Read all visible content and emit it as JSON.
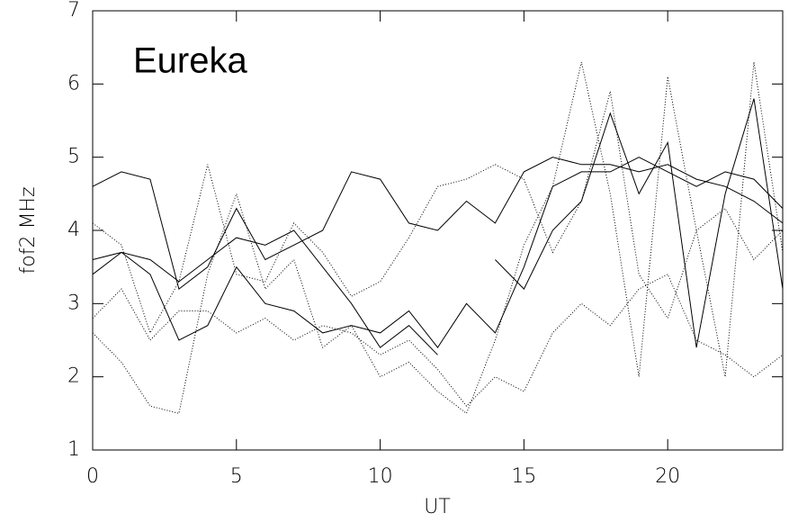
{
  "chart_data": {
    "type": "line",
    "annotation": "Eureka",
    "xlabel": "UT",
    "ylabel": "fof2 MHz",
    "xlim": [
      0,
      24
    ],
    "ylim": [
      1,
      7
    ],
    "xticks": [
      0,
      5,
      10,
      15,
      20
    ],
    "yticks": [
      1,
      2,
      3,
      4,
      5,
      6,
      7
    ],
    "x": [
      0,
      1,
      2,
      3,
      4,
      5,
      6,
      7,
      8,
      9,
      10,
      11,
      12,
      13,
      14,
      15,
      16,
      17,
      18,
      19,
      20,
      21,
      22,
      23,
      24
    ],
    "series": [
      {
        "color": "#000000",
        "style": "solid",
        "values": [
          4.6,
          4.8,
          4.7,
          3.2,
          3.5,
          4.3,
          3.6,
          3.8,
          4.0,
          4.8,
          4.7,
          4.1,
          4.0,
          4.4,
          4.1,
          4.8,
          5.0,
          4.9,
          4.9,
          4.8,
          4.9,
          4.7,
          4.6,
          4.4,
          4.1
        ]
      },
      {
        "color": "#000000",
        "style": "solid",
        "values": [
          3.6,
          3.7,
          3.4,
          2.5,
          2.7,
          3.5,
          3.0,
          2.9,
          2.6,
          2.7,
          2.6,
          2.9,
          2.4,
          3.0,
          2.6,
          3.5,
          4.6,
          4.8,
          4.8,
          5.0,
          4.8,
          4.6,
          4.8,
          4.7,
          4.3
        ]
      },
      {
        "color": "#000000",
        "style": "solid",
        "values": [
          3.4,
          3.7,
          3.6,
          3.3,
          3.6,
          3.9,
          3.8,
          4.0,
          3.5,
          3.0,
          2.4,
          2.7,
          2.3,
          null,
          3.6,
          3.2,
          4.0,
          4.4,
          5.6,
          4.5,
          5.2,
          2.4,
          4.5,
          5.8,
          3.2
        ]
      },
      {
        "color": "#000000",
        "style": "dotted",
        "values": [
          2.8,
          3.2,
          2.5,
          2.9,
          2.9,
          2.6,
          2.8,
          2.5,
          2.7,
          2.6,
          2.3,
          2.5,
          2.1,
          1.6,
          2.0,
          1.8,
          2.6,
          3.0,
          2.7,
          3.2,
          3.4,
          2.5,
          2.3,
          2.0,
          2.3
        ]
      },
      {
        "color": "#000000",
        "style": "dotted",
        "values": [
          2.6,
          2.2,
          1.6,
          1.5,
          3.4,
          4.5,
          3.2,
          3.6,
          2.4,
          2.7,
          2.0,
          2.2,
          1.8,
          1.5,
          2.5,
          3.8,
          4.6,
          6.3,
          4.5,
          2.0,
          6.1,
          4.0,
          2.0,
          6.3,
          3.7
        ]
      },
      {
        "color": "#000000",
        "style": "dotted",
        "values": [
          4.1,
          3.8,
          2.6,
          3.3,
          4.9,
          3.4,
          3.3,
          4.1,
          3.7,
          3.1,
          3.3,
          3.9,
          4.6,
          4.7,
          4.9,
          4.7,
          3.7,
          4.4,
          5.9,
          3.4,
          2.8,
          4.0,
          4.3,
          3.6,
          4.0
        ]
      }
    ]
  }
}
